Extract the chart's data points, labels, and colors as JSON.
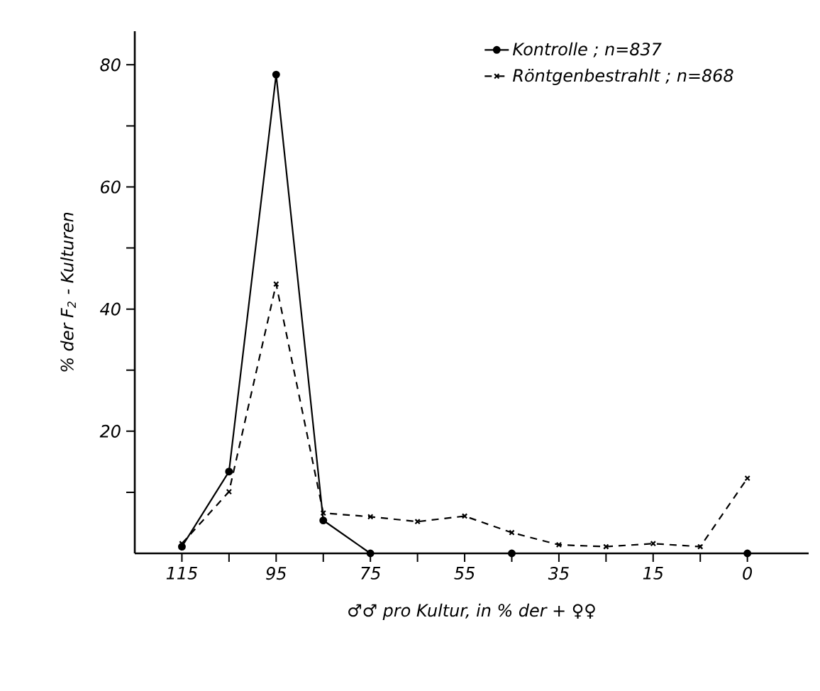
{
  "chart_data": {
    "type": "line",
    "xlabel": "♂♂ pro Kultur, in % der + ♀♀",
    "ylabel": "% der F$_{2}$ - Kulturen",
    "categories": [
      "115",
      null,
      "95",
      null,
      "75",
      null,
      "55",
      null,
      "35",
      null,
      "15",
      null,
      "0"
    ],
    "series": [
      {
        "name": "Kontrolle ; n=837",
        "color": "#000000",
        "marker": "circle",
        "line_style": "solid",
        "values": [
          1.1,
          13.4,
          78.4,
          5.4,
          0,
          null,
          null,
          0,
          null,
          null,
          null,
          null,
          0
        ]
      },
      {
        "name": "Röntgenbestrahlt ; n=868",
        "color": "#000000",
        "marker": "cross",
        "line_style": "dashed",
        "values": [
          1.6,
          10.1,
          44.1,
          6.6,
          6.0,
          5.2,
          6.1,
          3.4,
          1.4,
          1.1,
          1.6,
          1.1,
          12.3
        ]
      }
    ],
    "ylim": [
      0,
      85.5
    ],
    "yticks": [
      {
        "value": 10,
        "label": null
      },
      20,
      {
        "value": 30,
        "label": null
      },
      40,
      {
        "value": 50,
        "label": null
      },
      60,
      {
        "value": 70,
        "label": null
      },
      80
    ],
    "grid": false,
    "legend": "top right"
  }
}
